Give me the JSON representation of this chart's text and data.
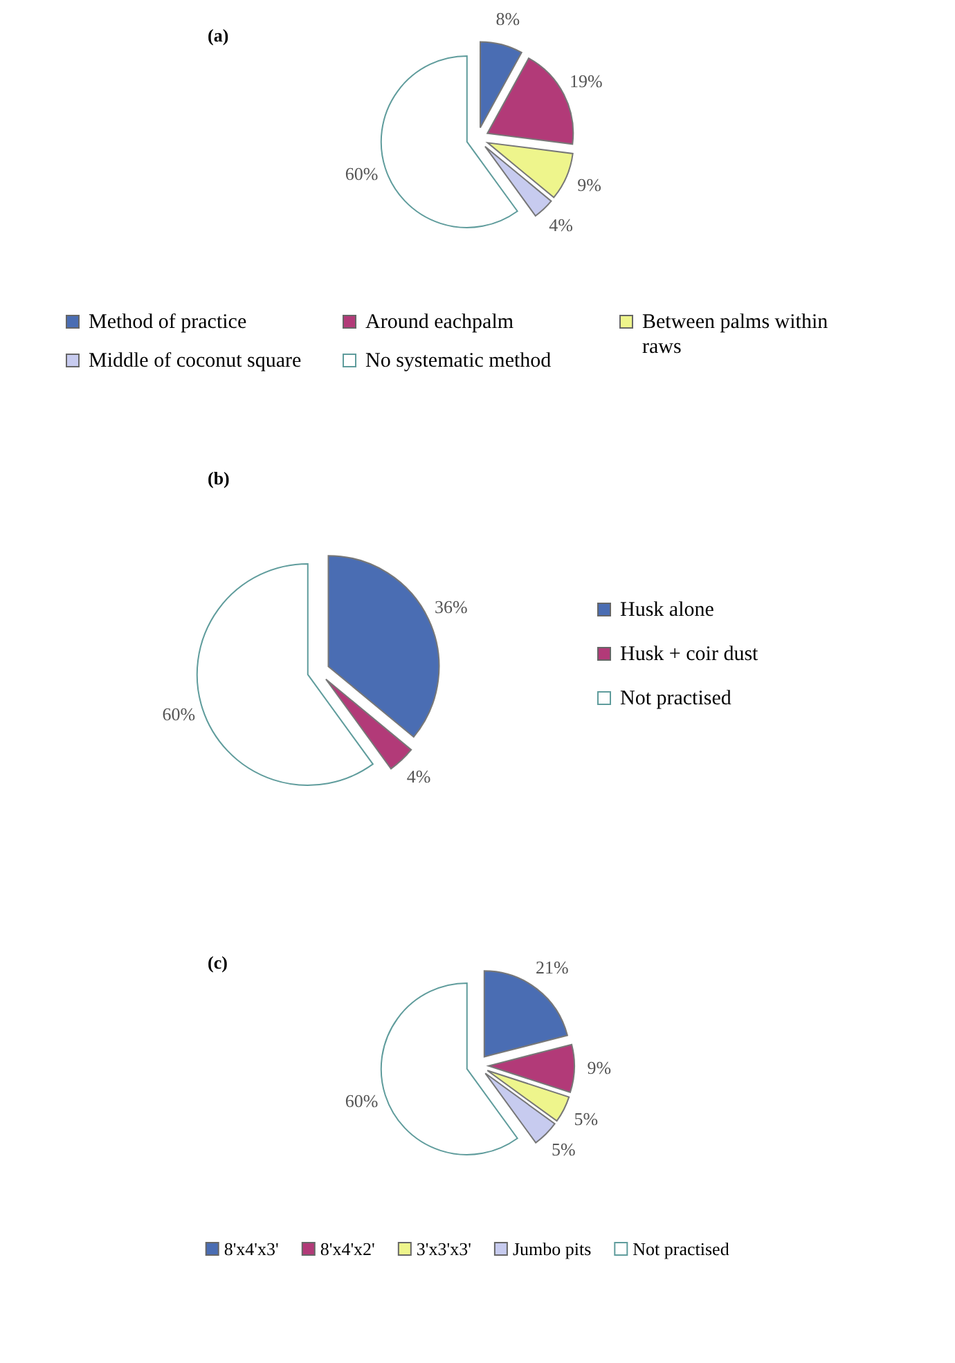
{
  "chart_data": [
    {
      "type": "pie",
      "title": "(a)",
      "categories": [
        "Method of practice",
        "Around eachpalm",
        "Between palms within raws",
        "Middle of coconut square",
        "No systematic method"
      ],
      "values": [
        8,
        19,
        9,
        4,
        60
      ],
      "value_labels": [
        "8%",
        "19%",
        "9%",
        "4%",
        "60%"
      ],
      "colors": [
        "#4a6db3",
        "#b23a78",
        "#eef58c",
        "#c7cbef",
        "#ffffff"
      ],
      "legend": "bottom"
    },
    {
      "type": "pie",
      "title": "(b)",
      "categories": [
        "Husk alone",
        "Husk + coir dust",
        "Not practised"
      ],
      "values": [
        36,
        4,
        60
      ],
      "value_labels": [
        "36%",
        "4%",
        "60%"
      ],
      "colors": [
        "#4a6db3",
        "#b23a78",
        "#ffffff"
      ],
      "legend": "right"
    },
    {
      "type": "pie",
      "title": "(c)",
      "categories": [
        "8'x4'x3'",
        "8'x4'x2'",
        "3'x3'x3'",
        "Jumbo pits",
        "Not practised"
      ],
      "values": [
        21,
        9,
        5,
        5,
        60
      ],
      "value_labels": [
        "21%",
        "9%",
        "5%",
        "5%",
        "60%"
      ],
      "colors": [
        "#4a6db3",
        "#b23a78",
        "#eef58c",
        "#c7cbef",
        "#ffffff"
      ],
      "legend": "bottom"
    }
  ]
}
